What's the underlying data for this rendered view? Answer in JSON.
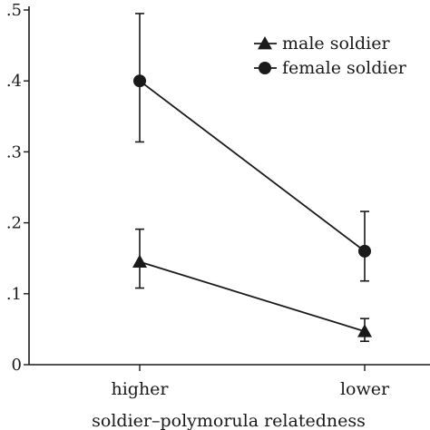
{
  "chart_data": {
    "type": "line",
    "categories": [
      "higher",
      "lower"
    ],
    "xlabel": "soldier–polymorula relatedness",
    "ylabel": "",
    "ylim": [
      0,
      0.5
    ],
    "yticks": [
      0,
      0.1,
      0.2,
      0.3,
      0.4,
      0.5
    ],
    "ytick_labels": [
      "0",
      ".1",
      ".2",
      ".3",
      ".4",
      ".5"
    ],
    "grid": false,
    "legend_position": "top-right",
    "series": [
      {
        "name": "male soldier",
        "marker": "triangle",
        "values": [
          0.145,
          0.047
        ],
        "err_low": [
          0.108,
          0.033
        ],
        "err_high": [
          0.191,
          0.065
        ]
      },
      {
        "name": "female soldier",
        "marker": "circle",
        "values": [
          0.4,
          0.16
        ],
        "err_low": [
          0.314,
          0.118
        ],
        "err_high": [
          0.495,
          0.216
        ]
      }
    ]
  }
}
